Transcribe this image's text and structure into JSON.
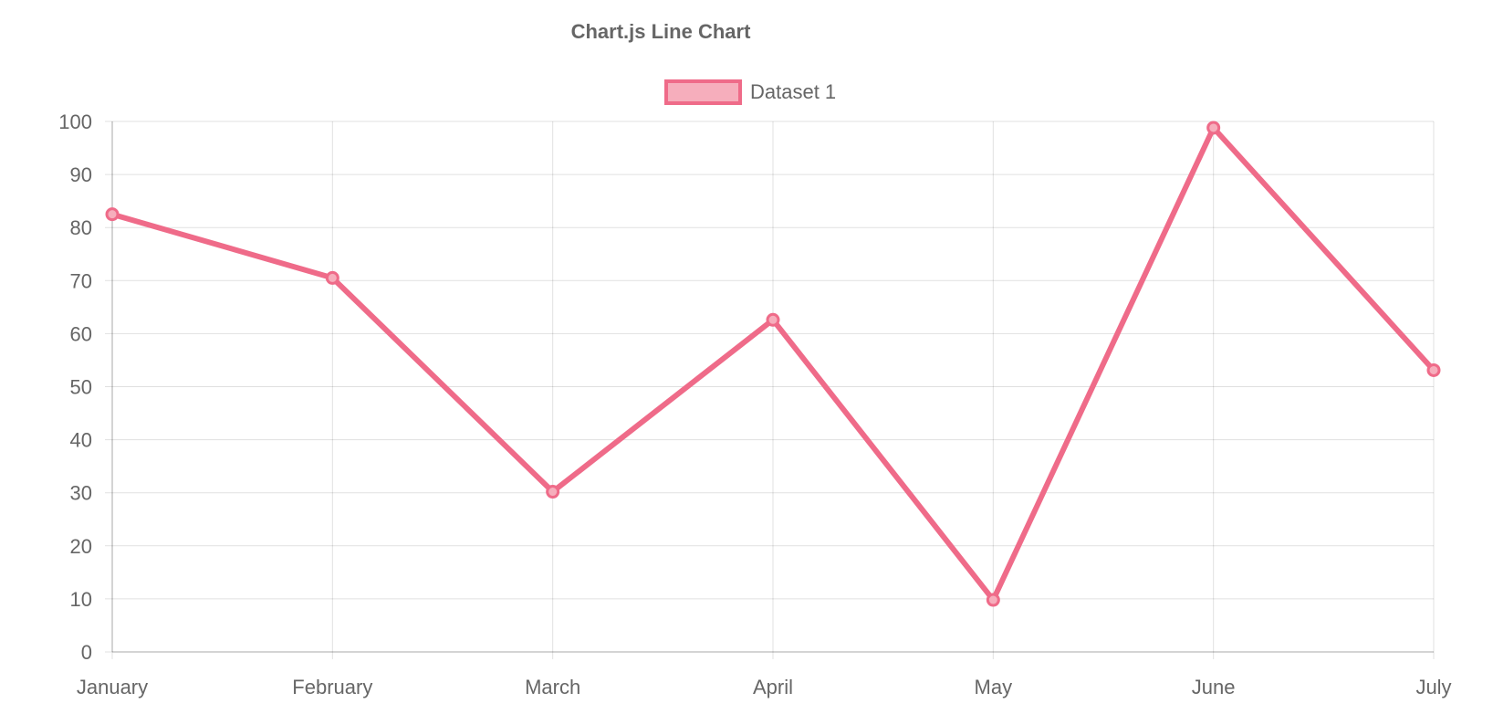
{
  "chart_data": {
    "type": "line",
    "title": "Chart.js Line Chart",
    "categories": [
      "January",
      "February",
      "March",
      "April",
      "May",
      "June",
      "July"
    ],
    "series": [
      {
        "name": "Dataset 1",
        "values": [
          82.5,
          70.5,
          30.2,
          62.6,
          9.8,
          98.8,
          53.1
        ],
        "border_color": "#ef6b89",
        "fill_color": "#f6aebc"
      }
    ],
    "ylim": [
      0,
      100
    ],
    "y_ticks": [
      "0",
      "10",
      "20",
      "30",
      "40",
      "50",
      "60",
      "70",
      "80",
      "90",
      "100"
    ],
    "legend_position": "top-center",
    "grid": true
  }
}
